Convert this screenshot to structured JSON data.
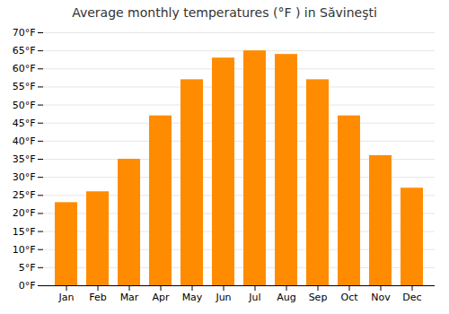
{
  "chart_data": {
    "type": "bar",
    "title": "Average monthly temperatures (°F ) in Săvineşti",
    "categories": [
      "Jan",
      "Feb",
      "Mar",
      "Apr",
      "May",
      "Jun",
      "Jul",
      "Aug",
      "Sep",
      "Oct",
      "Nov",
      "Dec"
    ],
    "values": [
      23,
      26,
      35,
      47,
      57,
      63,
      65,
      64,
      57,
      47,
      36,
      27
    ],
    "color": "#FF8C00",
    "ylim": [
      0,
      70
    ],
    "yticks": [
      {
        "value": 0,
        "label": "0°F"
      },
      {
        "value": 5,
        "label": "5°F"
      },
      {
        "value": 10,
        "label": "10°F"
      },
      {
        "value": 15,
        "label": "15°F"
      },
      {
        "value": 20,
        "label": "20°F"
      },
      {
        "value": 25,
        "label": "25°F"
      },
      {
        "value": 30,
        "label": "30°F"
      },
      {
        "value": 35,
        "label": "35°F"
      },
      {
        "value": 40,
        "label": "40°F"
      },
      {
        "value": 45,
        "label": "45°F"
      },
      {
        "value": 50,
        "label": "50°F"
      },
      {
        "value": 55,
        "label": "55°F"
      },
      {
        "value": 60,
        "label": "60°F"
      },
      {
        "value": 65,
        "label": "65°F"
      },
      {
        "value": 70,
        "label": "70°F"
      }
    ],
    "grid": true
  }
}
